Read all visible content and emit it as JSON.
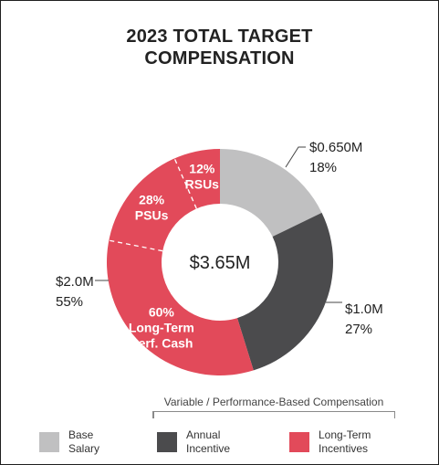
{
  "title_lines": [
    "2023 TOTAL TARGET",
    "COMPENSATION"
  ],
  "chart_data": {
    "type": "pie",
    "donut": true,
    "center_label": "$3.65M",
    "slices": [
      {
        "name": "Base Salary",
        "value": 0.65,
        "percent": 18,
        "color": "#c0c0c1"
      },
      {
        "name": "Annual Incentive",
        "value": 1.0,
        "percent": 27,
        "color": "#4b4b4d"
      },
      {
        "name": "Long-Term Incentives",
        "value": 2.0,
        "percent": 55,
        "color": "#e24a5a",
        "sub_slices": [
          {
            "lines": [
              "60%",
              "Long-Term",
              "Perf. Cash"
            ],
            "percent": 60
          },
          {
            "lines": [
              "28%",
              "PSUs"
            ],
            "percent": 28
          },
          {
            "lines": [
              "12%",
              "RSUs"
            ],
            "percent": 12
          }
        ]
      }
    ],
    "callouts": [
      {
        "lines": [
          "$0.650M",
          "18%"
        ]
      },
      {
        "lines": [
          "$1.0M",
          "27%"
        ]
      },
      {
        "lines": [
          "$2.0M",
          "55%"
        ]
      }
    ]
  },
  "bracket_label": "Variable / Performance-Based Compensation",
  "legend": [
    {
      "lines": [
        "Base",
        "Salary"
      ],
      "color": "#c0c0c1"
    },
    {
      "lines": [
        "Annual",
        "Incentive"
      ],
      "color": "#4b4b4d"
    },
    {
      "lines": [
        "Long-Term",
        "Incentives"
      ],
      "color": "#e24a5a"
    }
  ]
}
